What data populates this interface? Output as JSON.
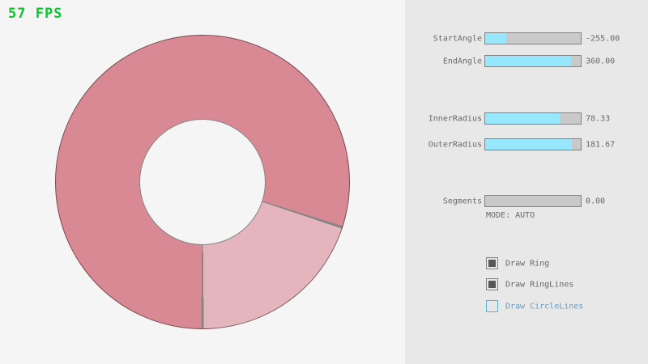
{
  "app": {
    "fps_label": "57 FPS"
  },
  "colors": {
    "canvas_bg": "#f5f5f5",
    "panel_bg": "#e8e8e8",
    "slider_fill": "#97e8ff",
    "fps_green": "#0bc42e",
    "label_text": "#686868",
    "focused_blue_text": "#6c9bbc",
    "focused_blue_border": "#5bb2d9"
  },
  "ring": {
    "start_angle": -255.0,
    "end_angle": 360.0,
    "inner_radius": 78.33,
    "outer_radius": 181.67,
    "dark_color": "#d98994",
    "light_color": "#e4b5bc",
    "line_color": "rgba(0,0,0,0.45)",
    "light_from": 108,
    "light_to": 180
  },
  "panel": {
    "sliders": [
      {
        "label": "StartAngle",
        "value": "-255.00",
        "fill": 22
      },
      {
        "label": "EndAngle",
        "value": "360.00",
        "fill": 90
      },
      {
        "label": "InnerRadius",
        "value": "78.33",
        "fill": 78
      },
      {
        "label": "OuterRadius",
        "value": "181.67",
        "fill": 91
      },
      {
        "label": "Segments",
        "value": "0.00",
        "fill": 0
      }
    ],
    "mode_label": "MODE: AUTO",
    "checkboxes": [
      {
        "label": "Draw Ring",
        "checked": true
      },
      {
        "label": "Draw RingLines",
        "checked": true
      },
      {
        "label": "Draw CircleLines",
        "checked": false
      }
    ]
  }
}
